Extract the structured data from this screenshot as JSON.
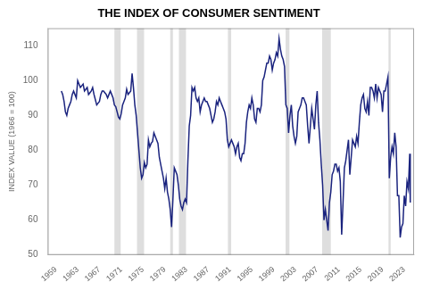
{
  "chart_data": {
    "type": "line",
    "title": "THE INDEX OF CONSUMER SENTIMENT",
    "ylabel": "INDEX VALUE (1966 = 100)",
    "xlim": [
      1957.5,
      2024.8
    ],
    "xticks": [
      1959,
      1963,
      1967,
      1971,
      1975,
      1979,
      1983,
      1987,
      1991,
      1995,
      1999,
      2003,
      2007,
      2011,
      2015,
      2019,
      2023
    ],
    "ylim": [
      50,
      115
    ],
    "yticks": [
      50,
      60,
      70,
      80,
      90,
      100,
      110
    ],
    "grid": false,
    "color": "#1a237e",
    "recessions": [
      [
        1969.75,
        1970.9
      ],
      [
        1973.9,
        1975.2
      ],
      [
        1980.0,
        1980.5
      ],
      [
        1981.6,
        1982.9
      ],
      [
        1990.6,
        1991.2
      ],
      [
        2001.2,
        2001.9
      ],
      [
        2007.9,
        2009.5
      ],
      [
        2020.1,
        2020.5
      ]
    ],
    "x": [
      1960.0,
      1960.25,
      1960.5,
      1960.75,
      1961.0,
      1961.25,
      1961.5,
      1961.75,
      1962.0,
      1962.25,
      1962.5,
      1962.75,
      1963.0,
      1963.25,
      1963.5,
      1963.75,
      1964.0,
      1964.25,
      1964.5,
      1964.75,
      1965.0,
      1965.25,
      1965.5,
      1965.75,
      1966.0,
      1966.25,
      1966.5,
      1966.75,
      1967.0,
      1967.25,
      1967.5,
      1967.75,
      1968.0,
      1968.25,
      1968.5,
      1968.75,
      1969.0,
      1969.25,
      1969.5,
      1969.75,
      1970.0,
      1970.25,
      1970.5,
      1970.75,
      1971.0,
      1971.25,
      1971.5,
      1971.75,
      1972.0,
      1972.25,
      1972.5,
      1972.75,
      1973.0,
      1973.25,
      1973.5,
      1973.75,
      1974.0,
      1974.25,
      1974.5,
      1974.75,
      1975.0,
      1975.25,
      1975.5,
      1975.75,
      1976.0,
      1976.25,
      1976.5,
      1976.75,
      1977.0,
      1977.25,
      1977.5,
      1977.75,
      1978.0,
      1978.25,
      1978.5,
      1978.75,
      1979.0,
      1979.25,
      1979.5,
      1979.75,
      1980.0,
      1980.25,
      1980.5,
      1980.75,
      1981.0,
      1981.25,
      1981.5,
      1981.75,
      1982.0,
      1982.25,
      1982.5,
      1982.75,
      1983.0,
      1983.25,
      1983.5,
      1983.75,
      1984.0,
      1984.25,
      1984.5,
      1984.75,
      1985.0,
      1985.25,
      1985.5,
      1985.75,
      1986.0,
      1986.25,
      1986.5,
      1986.75,
      1987.0,
      1987.25,
      1987.5,
      1987.75,
      1988.0,
      1988.25,
      1988.5,
      1988.75,
      1989.0,
      1989.25,
      1989.5,
      1989.75,
      1990.0,
      1990.25,
      1990.5,
      1990.75,
      1991.0,
      1991.25,
      1991.5,
      1991.75,
      1992.0,
      1992.25,
      1992.5,
      1992.75,
      1993.0,
      1993.25,
      1993.5,
      1993.75,
      1994.0,
      1994.25,
      1994.5,
      1994.75,
      1995.0,
      1995.25,
      1995.5,
      1995.75,
      1996.0,
      1996.25,
      1996.5,
      1996.75,
      1997.0,
      1997.25,
      1997.5,
      1997.75,
      1998.0,
      1998.25,
      1998.5,
      1998.75,
      1999.0,
      1999.25,
      1999.5,
      1999.75,
      2000.0,
      2000.25,
      2000.5,
      2000.75,
      2001.0,
      2001.25,
      2001.5,
      2001.75,
      2002.0,
      2002.25,
      2002.5,
      2002.75,
      2003.0,
      2003.25,
      2003.5,
      2003.75,
      2004.0,
      2004.25,
      2004.5,
      2004.75,
      2005.0,
      2005.25,
      2005.5,
      2005.75,
      2006.0,
      2006.25,
      2006.5,
      2006.75,
      2007.0,
      2007.25,
      2007.5,
      2007.75,
      2008.0,
      2008.25,
      2008.5,
      2008.75,
      2009.0,
      2009.25,
      2009.5,
      2009.75,
      2010.0,
      2010.25,
      2010.5,
      2010.75,
      2011.0,
      2011.25,
      2011.5,
      2011.75,
      2012.0,
      2012.25,
      2012.5,
      2012.75,
      2013.0,
      2013.25,
      2013.5,
      2013.75,
      2014.0,
      2014.25,
      2014.5,
      2014.75,
      2015.0,
      2015.25,
      2015.5,
      2015.75,
      2016.0,
      2016.25,
      2016.5,
      2016.75,
      2017.0,
      2017.25,
      2017.5,
      2017.75,
      2018.0,
      2018.25,
      2018.5,
      2018.75,
      2019.0,
      2019.25,
      2019.5,
      2019.75,
      2020.0,
      2020.25,
      2020.5,
      2020.75,
      2021.0,
      2021.25,
      2021.5,
      2021.75,
      2022.0,
      2022.25,
      2022.5,
      2022.75,
      2023.0,
      2023.25,
      2023.5,
      2023.75,
      2024.0,
      2024.1
    ],
    "values": [
      97.0,
      96.0,
      94.0,
      91.0,
      90.0,
      92.0,
      93.0,
      94.0,
      96.0,
      97.0,
      96.0,
      95.0,
      100.0,
      99.0,
      98.0,
      98.5,
      99.0,
      97.0,
      97.5,
      98.0,
      96.0,
      96.5,
      97.0,
      98.0,
      96.0,
      94.5,
      93.0,
      93.5,
      94.0,
      96.0,
      97.0,
      97.0,
      96.5,
      96.0,
      95.0,
      96.0,
      97.0,
      96.0,
      95.0,
      93.0,
      92.5,
      91.0,
      89.5,
      89.0,
      90.5,
      93.0,
      94.0,
      95.0,
      97.5,
      96.0,
      96.5,
      97.0,
      102.0,
      98.0,
      93.0,
      90.0,
      85.0,
      80.0,
      75.0,
      72.0,
      73.0,
      76.5,
      75.0,
      76.0,
      83.0,
      81.0,
      82.0,
      82.5,
      85.0,
      84.0,
      83.0,
      82.0,
      78.0,
      76.0,
      74.0,
      72.0,
      69.0,
      72.0,
      68.0,
      66.0,
      63.0,
      58.0,
      66.0,
      75.0,
      74.0,
      73.0,
      70.0,
      66.0,
      64.0,
      63.0,
      65.0,
      66.0,
      65.0,
      77.0,
      87.0,
      90.0,
      98.0,
      97.0,
      98.0,
      95.0,
      94.0,
      95.0,
      91.0,
      93.0,
      94.0,
      95.0,
      94.0,
      94.0,
      93.0,
      92.0,
      90.0,
      88.0,
      89.0,
      91.0,
      94.0,
      93.0,
      95.0,
      94.0,
      93.0,
      92.0,
      91.0,
      89.0,
      83.0,
      81.0,
      82.0,
      83.0,
      82.0,
      81.0,
      79.0,
      81.0,
      82.0,
      78.0,
      77.0,
      79.0,
      79.0,
      82.0,
      88.0,
      91.0,
      93.0,
      92.0,
      95.0,
      93.0,
      89.0,
      88.0,
      92.0,
      92.0,
      91.0,
      93.0,
      100.0,
      101.0,
      103.0,
      105.0,
      105.0,
      107.0,
      106.0,
      103.0,
      105.0,
      106.0,
      108.0,
      107.0,
      112.0,
      109.0,
      107.0,
      106.0,
      104.0,
      93.0,
      92.0,
      85.0,
      90.0,
      93.0,
      87.0,
      84.0,
      82.0,
      84.0,
      91.0,
      92.0,
      93.0,
      95.0,
      95.0,
      94.0,
      93.0,
      87.0,
      82.0,
      87.0,
      92.0,
      89.0,
      86.0,
      93.0,
      97.0,
      88.0,
      83.0,
      76.0,
      70.0,
      60.0,
      63.0,
      60.0,
      57.0,
      65.0,
      68.0,
      73.0,
      74.0,
      76.0,
      76.0,
      74.0,
      75.0,
      71.0,
      55.8,
      65.0,
      75.0,
      77.0,
      80.0,
      83.0,
      73.0,
      78.0,
      83.0,
      82.0,
      81.0,
      84.0,
      82.0,
      88.0,
      93.0,
      95.0,
      96.0,
      92.0,
      91.0,
      94.0,
      90.0,
      98.0,
      98.0,
      97.0,
      95.0,
      99.0,
      95.0,
      98.0,
      97.0,
      96.0,
      91.0,
      97.0,
      97.0,
      99.0,
      101.0,
      72.0,
      78.0,
      81.0,
      79.0,
      85.0,
      81.0,
      67.0,
      67.0,
      55.0,
      58.0,
      59.0,
      67.0,
      64.0,
      71.0,
      69.0,
      79.0,
      65.0
    ]
  }
}
